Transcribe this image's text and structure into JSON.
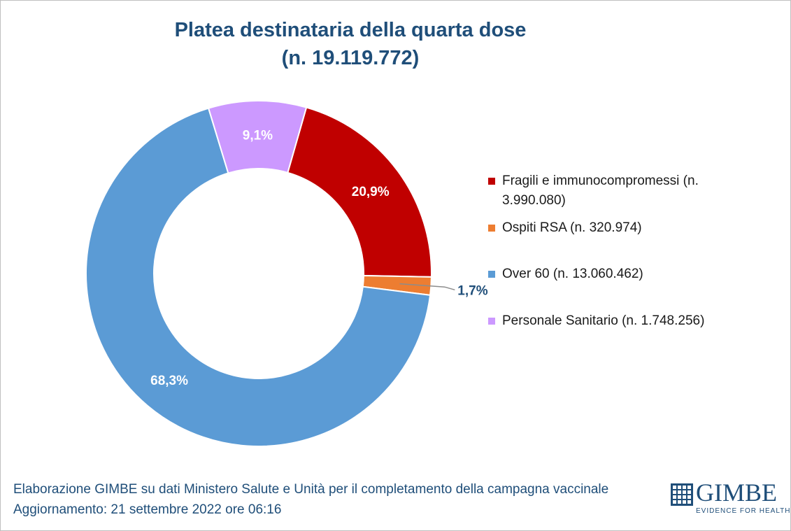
{
  "chart_data": {
    "type": "pie",
    "donut": true,
    "title": "Platea destinataria della quarta dose",
    "subtitle": "(n. 19.119.772)",
    "slices": [
      {
        "label": "Fragili e immunocompromessi (n. 3.990.080)",
        "value": 3990080,
        "percent_label": "20,9%",
        "color": "#c00000"
      },
      {
        "label": "Ospiti RSA (n. 320.974)",
        "value": 320974,
        "percent_label": "1,7%",
        "color": "#ed7d31"
      },
      {
        "label": "Over 60 (n. 13.060.462)",
        "value": 13060462,
        "percent_label": "68,3%",
        "color": "#5b9bd5"
      },
      {
        "label": "Personale Sanitario (n. 1.748.256)",
        "value": 1748256,
        "percent_label": "9,1%",
        "color": "#cc99ff"
      }
    ],
    "legend_position": "right",
    "legend": [
      {
        "text": "Fragili e immunocompromessi (n. 3.990.080)",
        "color": "#c00000"
      },
      {
        "text": "Ospiti RSA (n. 320.974)",
        "color": "#ed7d31"
      },
      {
        "text": "Over 60 (n. 13.060.462)",
        "color": "#5b9bd5"
      },
      {
        "text": "Personale Sanitario (n. 1.748.256)",
        "color": "#cc99ff"
      }
    ]
  },
  "footer": {
    "source": "Elaborazione GIMBE su dati Ministero Salute e Unità per il completamento della campagna vaccinale",
    "updated": "Aggiornamento: 21 settembre 2022 ore 06:16"
  },
  "logo": {
    "name": "GIMBE",
    "tagline": "EVIDENCE FOR HEALTH"
  }
}
